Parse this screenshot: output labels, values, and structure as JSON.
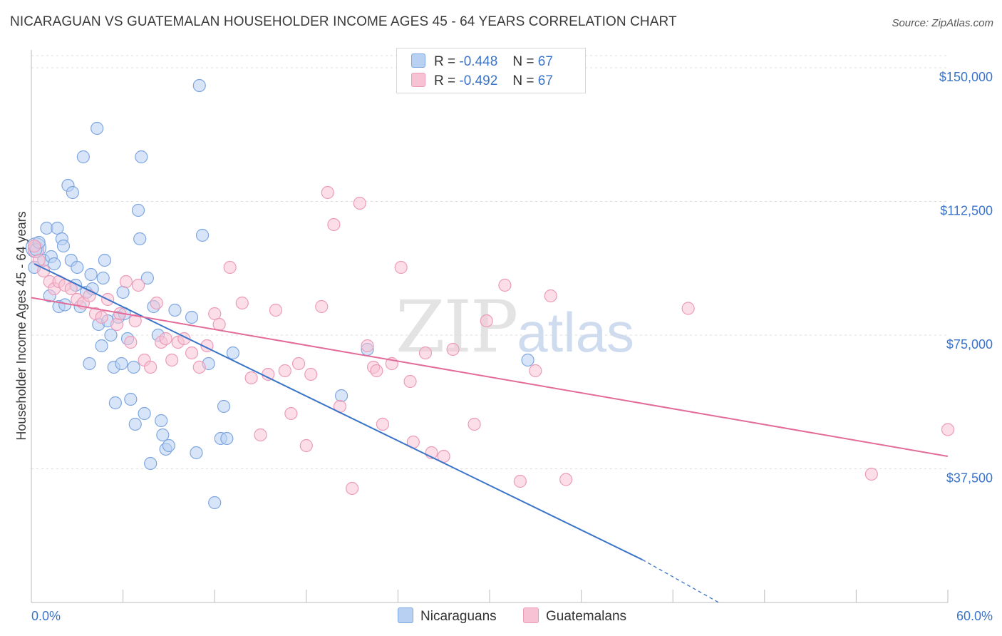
{
  "title": "NICARAGUAN VS GUATEMALAN HOUSEHOLDER INCOME AGES 45 - 64 YEARS CORRELATION CHART",
  "source": "Source: ZipAtlas.com",
  "watermark": {
    "zip": "ZIP",
    "atlas": "atlas"
  },
  "colors": {
    "blue": "#3a74c9",
    "pink": "#e26b98",
    "blue_fill": "#b8d0f2",
    "pink_fill": "#f7c3d4"
  },
  "legend": [
    {
      "r_label": "R =",
      "r_value": "-0.448",
      "n_label": "N =",
      "n_value": "67"
    },
    {
      "r_label": "R =",
      "r_value": "-0.492",
      "n_label": "N =",
      "n_value": "67"
    }
  ],
  "chart_data": {
    "type": "scatter",
    "ylabel": "Householder Income Ages 45 - 64 years",
    "xlim": [
      0,
      60
    ],
    "ylim": [
      0,
      155000
    ],
    "x_tick_labels": [
      "0.0%",
      "60.0%"
    ],
    "y_ticks": [
      37500,
      75000,
      112500,
      150000
    ],
    "y_tick_labels": [
      "$37,500",
      "$75,000",
      "$112,500",
      "$150,000"
    ],
    "grid": "horizontal dashed",
    "series": [
      {
        "name": "Nicaraguans",
        "trend": {
          "x": [
            0.2,
            40
          ],
          "y": [
            95000,
            12000
          ],
          "dash_to": [
            45,
            0
          ]
        },
        "points": [
          [
            0.3,
            99000
          ],
          [
            0.5,
            101000
          ],
          [
            0.8,
            96000
          ],
          [
            1.0,
            105000
          ],
          [
            1.2,
            86000
          ],
          [
            1.3,
            97000
          ],
          [
            1.5,
            95000
          ],
          [
            1.7,
            105000
          ],
          [
            1.8,
            83000
          ],
          [
            2.0,
            102000
          ],
          [
            2.1,
            100000
          ],
          [
            2.2,
            83500
          ],
          [
            2.4,
            117000
          ],
          [
            2.6,
            96000
          ],
          [
            2.7,
            115000
          ],
          [
            2.9,
            89000
          ],
          [
            3.0,
            94000
          ],
          [
            3.2,
            83000
          ],
          [
            3.4,
            125000
          ],
          [
            3.6,
            87000
          ],
          [
            3.8,
            67000
          ],
          [
            3.9,
            92000
          ],
          [
            4.0,
            88000
          ],
          [
            4.3,
            133000
          ],
          [
            4.4,
            78000
          ],
          [
            4.6,
            72000
          ],
          [
            4.7,
            91000
          ],
          [
            4.8,
            96000
          ],
          [
            5.0,
            79000
          ],
          [
            5.2,
            75000
          ],
          [
            5.4,
            66000
          ],
          [
            5.5,
            56000
          ],
          [
            5.7,
            80000
          ],
          [
            5.9,
            67000
          ],
          [
            6.0,
            87000
          ],
          [
            6.1,
            81000
          ],
          [
            6.3,
            74000
          ],
          [
            6.5,
            57000
          ],
          [
            6.7,
            66000
          ],
          [
            6.8,
            50000
          ],
          [
            7.0,
            110000
          ],
          [
            7.1,
            102000
          ],
          [
            7.2,
            125000
          ],
          [
            7.4,
            53000
          ],
          [
            7.6,
            91000
          ],
          [
            7.8,
            39000
          ],
          [
            8.0,
            83000
          ],
          [
            8.3,
            75000
          ],
          [
            8.5,
            51000
          ],
          [
            8.6,
            47000
          ],
          [
            8.8,
            43000
          ],
          [
            9.0,
            44000
          ],
          [
            9.4,
            82000
          ],
          [
            10.5,
            80000
          ],
          [
            10.8,
            42000
          ],
          [
            11.0,
            145000
          ],
          [
            11.2,
            103000
          ],
          [
            11.6,
            67000
          ],
          [
            12.0,
            28000
          ],
          [
            12.4,
            46000
          ],
          [
            12.6,
            55000
          ],
          [
            12.8,
            46000
          ],
          [
            13.2,
            70000
          ],
          [
            20.3,
            58000
          ],
          [
            22.0,
            71000
          ],
          [
            32.5,
            68000
          ],
          [
            0.2,
            94000
          ]
        ]
      },
      {
        "name": "Guatemalans",
        "trend": {
          "x": [
            0,
            60
          ],
          "y": [
            85500,
            41000
          ]
        },
        "points": [
          [
            0.2,
            100000
          ],
          [
            0.5,
            96000
          ],
          [
            0.8,
            93000
          ],
          [
            1.2,
            90000
          ],
          [
            1.5,
            88000
          ],
          [
            1.8,
            90000
          ],
          [
            2.2,
            89000
          ],
          [
            2.6,
            88000
          ],
          [
            3.0,
            85000
          ],
          [
            3.4,
            84000
          ],
          [
            3.8,
            86000
          ],
          [
            4.2,
            81000
          ],
          [
            4.6,
            80000
          ],
          [
            5.0,
            85000
          ],
          [
            5.6,
            78000
          ],
          [
            5.8,
            81000
          ],
          [
            6.2,
            90000
          ],
          [
            6.5,
            73000
          ],
          [
            6.8,
            79000
          ],
          [
            7.0,
            89000
          ],
          [
            7.4,
            68000
          ],
          [
            7.8,
            66000
          ],
          [
            8.2,
            84000
          ],
          [
            8.5,
            73000
          ],
          [
            8.8,
            74000
          ],
          [
            9.2,
            68000
          ],
          [
            9.6,
            73000
          ],
          [
            10.0,
            74000
          ],
          [
            10.5,
            70000
          ],
          [
            11.0,
            66000
          ],
          [
            11.5,
            72000
          ],
          [
            12.0,
            81000
          ],
          [
            12.3,
            78000
          ],
          [
            13.0,
            94000
          ],
          [
            13.8,
            84000
          ],
          [
            14.4,
            63000
          ],
          [
            15.0,
            47000
          ],
          [
            15.5,
            64000
          ],
          [
            16.0,
            82000
          ],
          [
            16.6,
            65000
          ],
          [
            17.0,
            53000
          ],
          [
            17.5,
            67000
          ],
          [
            18.0,
            44000
          ],
          [
            18.3,
            64000
          ],
          [
            19.0,
            83000
          ],
          [
            19.4,
            115000
          ],
          [
            19.8,
            106000
          ],
          [
            20.2,
            55000
          ],
          [
            21.0,
            32000
          ],
          [
            21.5,
            112000
          ],
          [
            22.0,
            72000
          ],
          [
            22.4,
            66000
          ],
          [
            22.6,
            65000
          ],
          [
            23.0,
            50000
          ],
          [
            23.6,
            67000
          ],
          [
            24.2,
            94000
          ],
          [
            24.8,
            62000
          ],
          [
            25.0,
            45000
          ],
          [
            25.8,
            70000
          ],
          [
            26.2,
            42000
          ],
          [
            27.0,
            41000
          ],
          [
            27.6,
            71000
          ],
          [
            29.0,
            50000
          ],
          [
            29.8,
            79000
          ],
          [
            31.0,
            89000
          ],
          [
            32.0,
            34000
          ],
          [
            34.0,
            86000
          ]
        ],
        "extra_points": [
          [
            33.0,
            65000
          ],
          [
            35.0,
            34500
          ],
          [
            43.0,
            82500
          ],
          [
            55.0,
            36000
          ],
          [
            60.0,
            48500
          ]
        ]
      }
    ]
  },
  "bottom_legend": [
    {
      "label": "Nicaraguans"
    },
    {
      "label": "Guatemalans"
    }
  ]
}
